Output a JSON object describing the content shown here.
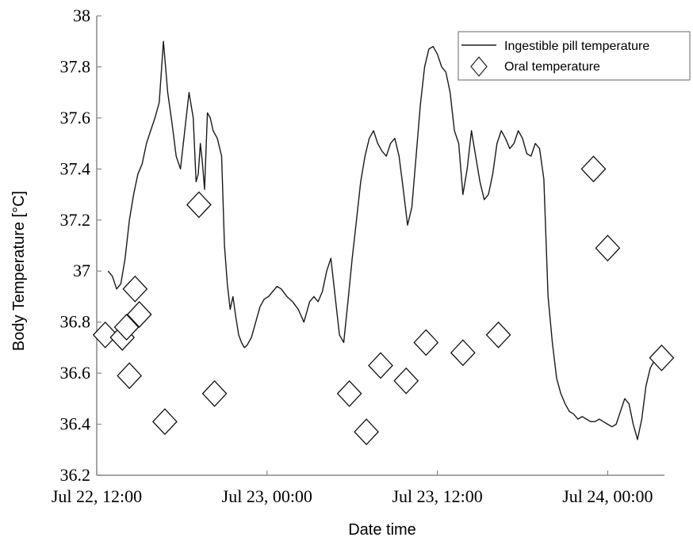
{
  "chart_data": {
    "type": "line",
    "xlabel": "Date time",
    "ylabel": "Body Temperature [°C]",
    "x_unit": "hours",
    "xlim": [
      0,
      40
    ],
    "ylim": [
      36.2,
      38
    ],
    "y_ticks": [
      "36.2",
      "36.4",
      "36.6",
      "36.8",
      "37",
      "37.2",
      "37.4",
      "37.6",
      "37.8",
      "38"
    ],
    "x_ticks": [
      {
        "value": 0,
        "label": "Jul 22, 12:00"
      },
      {
        "value": 12,
        "label": "Jul 23, 00:00"
      },
      {
        "value": 24,
        "label": "Jul 23, 12:00"
      },
      {
        "value": 36,
        "label": "Jul 24, 00:00"
      }
    ],
    "grid": false,
    "legend_position": "top-right",
    "series": [
      {
        "name": "Ingestible pill temperature",
        "kind": "line",
        "color": "#1a1a1a",
        "x": [
          0.8,
          1.1,
          1.4,
          1.7,
          2.0,
          2.3,
          2.6,
          2.9,
          3.2,
          3.5,
          3.8,
          4.1,
          4.4,
          4.7,
          5.0,
          5.3,
          5.6,
          5.9,
          6.2,
          6.5,
          6.8,
          7.0,
          7.15,
          7.3,
          7.45,
          7.6,
          7.8,
          8.0,
          8.2,
          8.5,
          8.8,
          9.0,
          9.2,
          9.4,
          9.6,
          9.8,
          10.0,
          10.2,
          10.4,
          10.6,
          10.9,
          11.2,
          11.5,
          11.8,
          12.1,
          12.4,
          12.7,
          13.0,
          13.4,
          13.8,
          14.2,
          14.6,
          15.0,
          15.3,
          15.6,
          15.9,
          16.2,
          16.5,
          16.8,
          17.1,
          17.4,
          17.7,
          18.0,
          18.3,
          18.6,
          18.9,
          19.2,
          19.5,
          19.8,
          20.1,
          20.4,
          20.7,
          21.0,
          21.3,
          21.6,
          21.9,
          22.2,
          22.5,
          22.8,
          23.1,
          23.4,
          23.7,
          24.0,
          24.3,
          24.6,
          24.9,
          25.2,
          25.5,
          25.8,
          26.1,
          26.4,
          26.7,
          27.0,
          27.3,
          27.6,
          27.9,
          28.2,
          28.5,
          28.8,
          29.1,
          29.4,
          29.7,
          30.0,
          30.3,
          30.6,
          30.9,
          31.2,
          31.5,
          31.8,
          32.1,
          32.4,
          32.7,
          33.0,
          33.3,
          33.6,
          33.9,
          34.2,
          34.5,
          34.8,
          35.1,
          35.4,
          35.7,
          36.0,
          36.3,
          36.6,
          36.9,
          37.2,
          37.5,
          37.8,
          38.1,
          38.4,
          38.7,
          39.0,
          39.3,
          39.6,
          39.85
        ],
        "y": [
          37.0,
          36.98,
          36.93,
          36.95,
          37.05,
          37.2,
          37.3,
          37.38,
          37.42,
          37.5,
          37.55,
          37.6,
          37.66,
          37.9,
          37.7,
          37.58,
          37.45,
          37.4,
          37.55,
          37.7,
          37.6,
          37.35,
          37.38,
          37.5,
          37.42,
          37.32,
          37.62,
          37.6,
          37.55,
          37.52,
          37.45,
          37.1,
          36.95,
          36.85,
          36.9,
          36.82,
          36.75,
          36.72,
          36.7,
          36.71,
          36.74,
          36.8,
          36.86,
          36.89,
          36.9,
          36.92,
          36.94,
          36.93,
          36.9,
          36.88,
          36.85,
          36.8,
          36.88,
          36.9,
          36.88,
          36.92,
          37.0,
          37.05,
          36.9,
          36.75,
          36.72,
          36.88,
          37.05,
          37.2,
          37.35,
          37.45,
          37.52,
          37.55,
          37.5,
          37.47,
          37.45,
          37.5,
          37.52,
          37.45,
          37.32,
          37.18,
          37.25,
          37.45,
          37.65,
          37.8,
          37.87,
          37.88,
          37.85,
          37.8,
          37.78,
          37.7,
          37.55,
          37.5,
          37.3,
          37.4,
          37.55,
          37.45,
          37.35,
          37.28,
          37.3,
          37.38,
          37.5,
          37.55,
          37.52,
          37.48,
          37.5,
          37.55,
          37.52,
          37.46,
          37.45,
          37.5,
          37.48,
          37.36,
          36.9,
          36.72,
          36.58,
          36.52,
          36.48,
          36.45,
          36.44,
          36.42,
          36.43,
          36.42,
          36.41,
          36.41,
          36.42,
          36.41,
          36.4,
          36.39,
          36.4,
          36.45,
          36.5,
          36.48,
          36.4,
          36.34,
          36.42,
          36.55,
          36.62,
          36.65,
          36.66,
          36.65
        ]
      },
      {
        "name": "Oral temperature",
        "kind": "scatter",
        "marker": "diamond",
        "x": [
          0.6,
          1.8,
          2.1,
          2.3,
          2.7,
          3.0,
          4.8,
          7.2,
          8.3,
          17.8,
          19.0,
          20.0,
          21.8,
          23.2,
          25.8,
          28.3,
          35.0,
          36.0,
          39.8
        ],
        "y": [
          36.75,
          36.74,
          36.78,
          36.59,
          36.93,
          36.83,
          36.41,
          37.26,
          36.52,
          36.52,
          36.37,
          36.63,
          36.57,
          36.72,
          36.68,
          36.75,
          37.4,
          37.09,
          36.66
        ]
      }
    ]
  }
}
